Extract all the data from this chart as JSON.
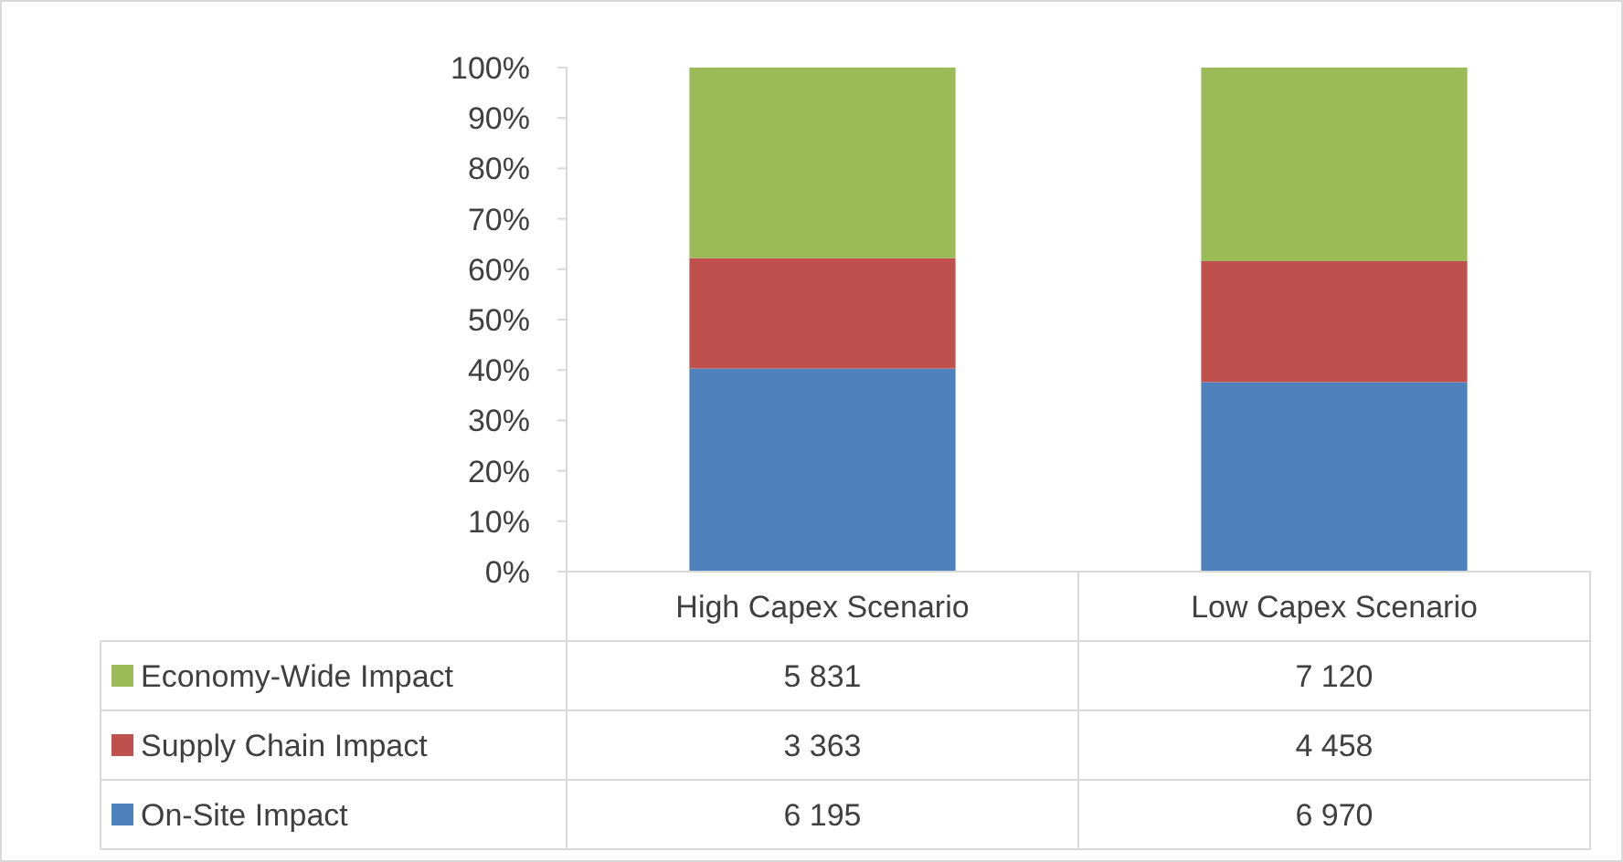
{
  "chart_data": {
    "type": "bar",
    "stacked": true,
    "categories": [
      "High Capex Scenario",
      "Low Capex Scenario"
    ],
    "series": [
      {
        "name": "On-Site Impact",
        "color": "#4f81bd",
        "values": [
          40.3,
          37.6
        ]
      },
      {
        "name": "Supply Chain Impact",
        "color": "#c0504d",
        "values": [
          21.9,
          24.0
        ]
      },
      {
        "name": "Economy-Wide Impact",
        "color": "#9bbb59",
        "values": [
          37.8,
          38.4
        ]
      }
    ],
    "annotations": [
      "5 831",
      "7 120",
      "3 363",
      "4 458",
      "6 195",
      "6 970"
    ],
    "ylim": [
      0,
      100
    ],
    "yticks": [
      {
        "value": 0,
        "label": "0%"
      },
      {
        "value": 10,
        "label": "10%"
      },
      {
        "value": 20,
        "label": "20%"
      },
      {
        "value": 30,
        "label": "30%"
      },
      {
        "value": 40,
        "label": "40%"
      },
      {
        "value": 50,
        "label": "50%"
      },
      {
        "value": 60,
        "label": "60%"
      },
      {
        "value": 70,
        "label": "70%"
      },
      {
        "value": 80,
        "label": "80%"
      },
      {
        "value": 90,
        "label": "90%"
      },
      {
        "value": 100,
        "label": "100%"
      }
    ],
    "legend": "bottom",
    "grid": false
  }
}
